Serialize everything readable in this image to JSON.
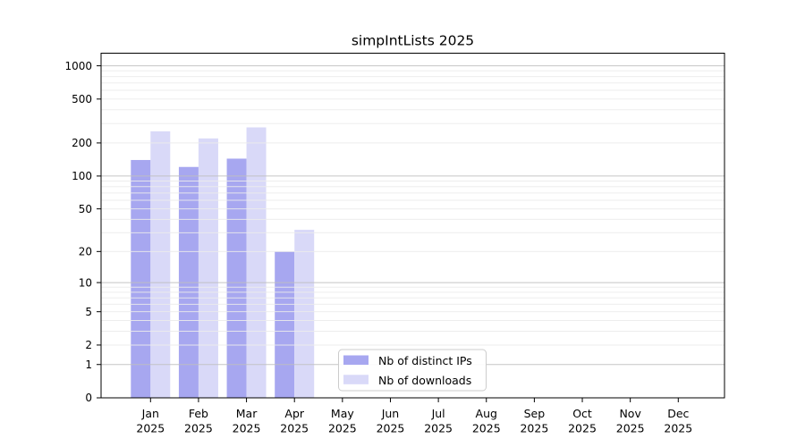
{
  "chart_data": {
    "type": "bar",
    "title": "simpIntLists 2025",
    "categories": [
      "Jan",
      "Feb",
      "Mar",
      "Apr",
      "May",
      "Jun",
      "Jul",
      "Aug",
      "Sep",
      "Oct",
      "Nov",
      "Dec"
    ],
    "category_year": "2025",
    "series": [
      {
        "name": "Nb of distinct IPs",
        "color": "#a7a7f0",
        "values": [
          140,
          121,
          144,
          20,
          0,
          0,
          0,
          0,
          0,
          0,
          0,
          0
        ]
      },
      {
        "name": "Nb of downloads",
        "color": "#d9d9f8",
        "values": [
          255,
          220,
          277,
          32,
          0,
          0,
          0,
          0,
          0,
          0,
          0,
          0
        ]
      }
    ],
    "xlabel": "",
    "ylabel": "",
    "yscale": "log1p",
    "yticks": [
      0,
      1,
      2,
      5,
      10,
      20,
      50,
      100,
      200,
      500,
      1000
    ],
    "ylim": [
      0,
      1300
    ],
    "grid": {
      "on": true,
      "minor_color": "#ebebeb",
      "major_color": "#bfbfbf",
      "major_at": [
        1,
        10,
        100,
        1000
      ]
    },
    "legend": {
      "position": "inside-bottom-center",
      "border_color": "#cccccc",
      "background": "#ffffff"
    },
    "axis_color": "#000000",
    "background": "#ffffff"
  }
}
